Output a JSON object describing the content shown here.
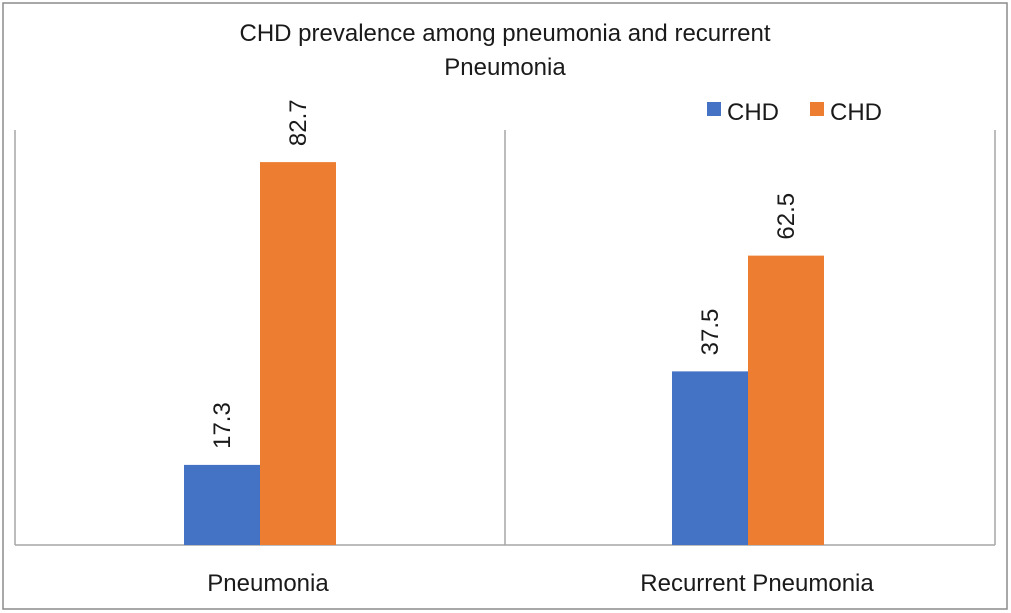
{
  "chart_data": {
    "type": "bar",
    "title_line1": "CHD prevalence among pneumonia and recurrent",
    "title_line2": "Pneumonia",
    "categories": [
      "Pneumonia",
      "Recurrent Pneumonia"
    ],
    "series": [
      {
        "name": "CHD",
        "color": "#4472c4",
        "values": [
          17.3,
          37.5
        ]
      },
      {
        "name": "CHD",
        "color": "#ed7d31",
        "values": [
          82.7,
          62.5
        ]
      }
    ],
    "ylim": [
      0,
      100
    ],
    "grid": false,
    "legend_position": "top-right",
    "data_labels_rotated": true
  }
}
